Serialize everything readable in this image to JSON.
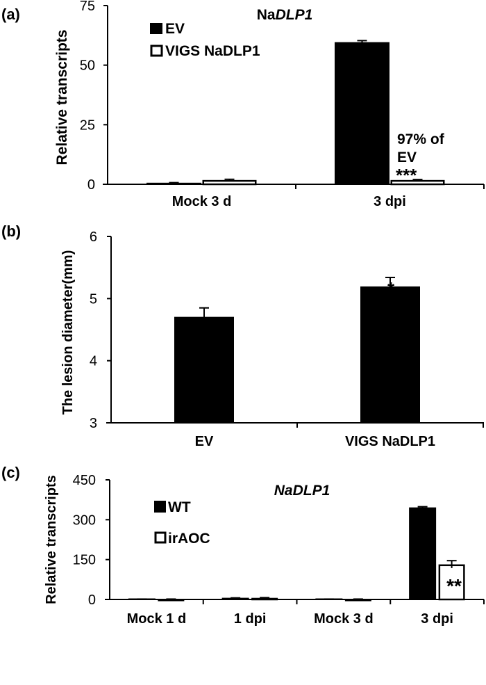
{
  "chart_data": [
    {
      "panel": "(a)",
      "type": "bar",
      "title_prefix": "Na",
      "title_italic": "DLP1",
      "ylabel": "Relative transcripts",
      "ylim": [
        0,
        75
      ],
      "yticks": [
        "0",
        "25",
        "50",
        "75"
      ],
      "categories": [
        "Mock 3 d",
        "3 dpi"
      ],
      "series": [
        {
          "name": "EV",
          "fill": "#000000",
          "values": [
            0.5,
            59.5
          ],
          "errors": [
            0.2,
            0.8
          ]
        },
        {
          "name": "VIGS NaDLP1",
          "fill": "#ffffff",
          "values": [
            1.8,
            1.8
          ],
          "errors": [
            0.3,
            0.2
          ]
        }
      ],
      "annotations": {
        "pct_line1": "97% of",
        "pct_line2": "EV",
        "stars": "***"
      }
    },
    {
      "panel": "(b)",
      "type": "bar",
      "ylabel": "The lesion diameter(mm)",
      "ylim": [
        3,
        6
      ],
      "yticks": [
        "3",
        "4",
        "5",
        "6"
      ],
      "categories": [
        "EV",
        "VIGS NaDLP1"
      ],
      "series": [
        {
          "name": "lesion diameter",
          "fill": "#000000",
          "values": [
            4.7,
            5.19
          ],
          "errors": [
            0.15,
            0.15
          ]
        }
      ],
      "annotations": {
        "stars": "*"
      }
    },
    {
      "panel": "(c)",
      "type": "bar",
      "title": "NaDLP1",
      "ylabel": "Relative transcripts",
      "ylim": [
        0,
        450
      ],
      "yticks": [
        "0",
        "150",
        "300",
        "450"
      ],
      "categories": [
        "Mock 1 d",
        "1 dpi",
        "Mock 3 d",
        "3 dpi"
      ],
      "series": [
        {
          "name": "WT",
          "fill": "#000000",
          "values": [
            1,
            5,
            1,
            345
          ],
          "errors": [
            0.5,
            1,
            0.5,
            4
          ]
        },
        {
          "name": "irAOC",
          "fill": "#ffffff",
          "values": [
            1,
            6,
            1,
            132
          ],
          "errors": [
            0.5,
            1,
            0.5,
            14
          ]
        }
      ],
      "annotations": {
        "stars": "**"
      }
    }
  ]
}
